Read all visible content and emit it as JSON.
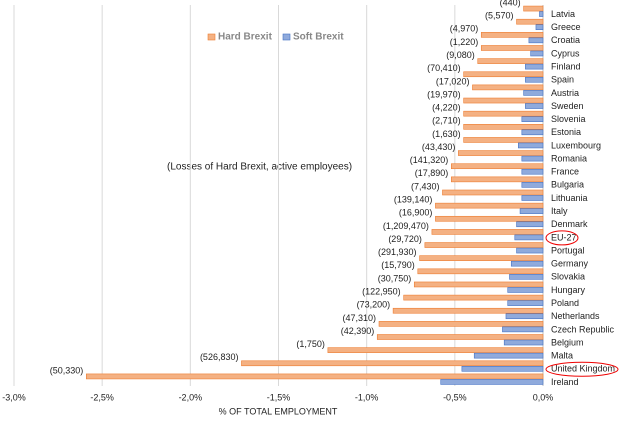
{
  "chart_data": {
    "type": "hbar",
    "x_label": "% OF TOTAL EMPLOYMENT",
    "annotation": "(Losses of Hard Brexit, active employees)",
    "categories": [
      "Latvia",
      "Greece",
      "Croatia",
      "Cyprus",
      "Finland",
      "Spain",
      "Austria",
      "Sweden",
      "Slovenia",
      "Estonia",
      "Luxembourg",
      "Romania",
      "France",
      "Bulgaria",
      "Lithuania",
      "Italy",
      "Denmark",
      "EU-27",
      "Portugal",
      "Germany",
      "Slovakia",
      "Hungary",
      "Poland",
      "Netherlands",
      "Czech Republic",
      "Belgium",
      "Malta",
      "United Kingdom",
      "Ireland"
    ],
    "series": [
      {
        "name": "Hard Brexit",
        "color": "#f4b183",
        "stroke": "#ed7d31",
        "values": [
          -0.11,
          -0.15,
          -0.35,
          -0.35,
          -0.37,
          -0.45,
          -0.4,
          -0.45,
          -0.45,
          -0.45,
          -0.45,
          -0.48,
          -0.52,
          -0.52,
          -0.57,
          -0.61,
          -0.61,
          -0.63,
          -0.67,
          -0.7,
          -0.71,
          -0.73,
          -0.79,
          -0.85,
          -0.93,
          -0.94,
          -1.22,
          -1.71,
          -2.59
        ],
        "annotations": [
          "(440)",
          "(5,570)",
          "(4,970)",
          "(1,220)",
          "(9,080)",
          "(70,410)",
          "(17,020)",
          "(19,970)",
          "(4,220)",
          "(2,710)",
          "(1,630)",
          "(43,430)",
          "(141,320)",
          "(17,890)",
          "(7,430)",
          "(139,140)",
          "(16,900)",
          "(1,209,470)",
          "(29,720)",
          "(291,930)",
          "(15,790)",
          "(30,750)",
          "(122,950)",
          "(73,200)",
          "(47,310)",
          "(42,390)",
          "(1,750)",
          "(526,830)",
          "(50,330)"
        ]
      },
      {
        "name": "Soft Brexit",
        "color": "#8faadc",
        "stroke": "#4472c4",
        "values": [
          -0.02,
          -0.04,
          -0.08,
          -0.07,
          -0.1,
          -0.1,
          -0.11,
          -0.1,
          -0.12,
          -0.12,
          -0.14,
          -0.12,
          -0.12,
          -0.12,
          -0.12,
          -0.13,
          -0.15,
          -0.16,
          -0.15,
          -0.18,
          -0.19,
          -0.2,
          -0.2,
          -0.21,
          -0.23,
          -0.22,
          -0.39,
          -0.46,
          -0.58
        ]
      }
    ],
    "highlighted": [
      17,
      27
    ],
    "xlim": [
      -3,
      0
    ],
    "xticks": [
      {
        "value": -3,
        "label": "-3,0%"
      },
      {
        "value": -2.5,
        "label": "-2,5%"
      },
      {
        "value": -2,
        "label": "-2,0%"
      },
      {
        "value": -1.5,
        "label": "-1,5%"
      },
      {
        "value": -1,
        "label": "-1,0%"
      },
      {
        "value": -0.5,
        "label": "-0,5%"
      },
      {
        "value": 0,
        "label": "0,0%"
      }
    ],
    "grid": true
  }
}
